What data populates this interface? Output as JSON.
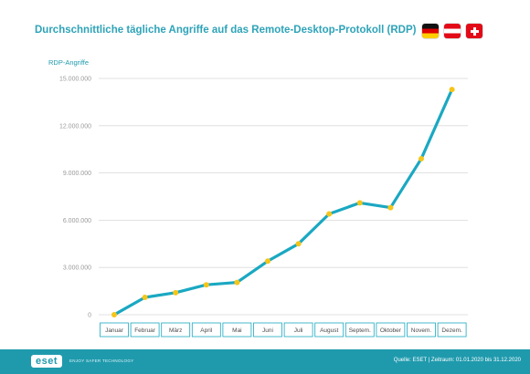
{
  "header": {
    "title": "Durchschnittliche tägliche Angriffe auf das Remote-Desktop-Protokoll (RDP)",
    "flags": [
      {
        "country": "Deutschland",
        "icon": "flag-germany-icon"
      },
      {
        "country": "Österreich",
        "icon": "flag-austria-icon"
      },
      {
        "country": "Schweiz",
        "icon": "flag-switzerland-icon"
      }
    ]
  },
  "chart_data": {
    "type": "line",
    "title": "Durchschnittliche tägliche Angriffe auf das Remote-Desktop-Protokoll (RDP)",
    "ylabel": "RDP-Angriffe",
    "xlabel": "",
    "categories": [
      "Januar",
      "Februar",
      "März",
      "April",
      "Mai",
      "Juni",
      "Juli",
      "August",
      "Septem.",
      "Oktober",
      "Novem.",
      "Dezem."
    ],
    "series": [
      {
        "values": [
          0,
          1100000,
          1400000,
          1900000,
          2050000,
          3400000,
          4500000,
          6400000,
          7100000,
          6800000,
          9900000,
          14300000
        ]
      }
    ],
    "ylim": [
      0,
      15000000
    ],
    "yticks": [
      0,
      3000000,
      6000000,
      9000000,
      12000000,
      15000000
    ],
    "ytick_labels": [
      "0",
      "3.000.000",
      "6.000.000",
      "9.000.000",
      "12.000.000",
      "15.000.000"
    ],
    "grid": true,
    "line_color": "#1aa8c2",
    "marker_color": "#f5c518"
  },
  "footer": {
    "logo": "eset",
    "tagline": "ENJOY SAFER TECHNOLOGY",
    "source": "Quelle: ESET  |  Zeitraum: 01.01.2020 bis 31.12.2020"
  },
  "colors": {
    "accent": "#2ea3b8",
    "footer": "#1f9aad",
    "grid": "#d9d9d9"
  }
}
